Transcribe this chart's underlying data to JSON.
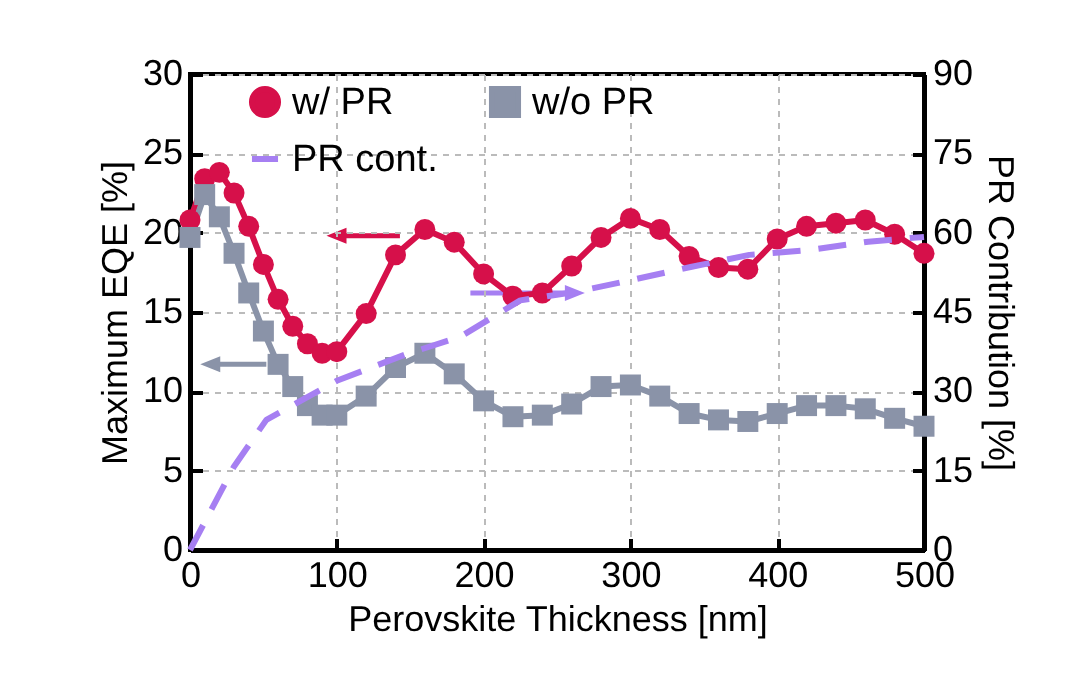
{
  "chart_data": {
    "type": "line",
    "xlabel": "Perovskite Thickness [nm]",
    "ylabel": "Maximum EQE [%]",
    "y2label": "PR Contribution [%]",
    "x": [
      0,
      10,
      20,
      30,
      40,
      50,
      60,
      70,
      80,
      90,
      100,
      120,
      140,
      160,
      180,
      200,
      220,
      240,
      260,
      280,
      300,
      320,
      340,
      360,
      380,
      400,
      420,
      440,
      460,
      480,
      500
    ],
    "series": [
      {
        "name": "w/ PR",
        "color": "#d6104a",
        "marker": "circle",
        "values": [
          20.8,
          23.4,
          23.8,
          22.5,
          20.4,
          18.0,
          15.8,
          14.1,
          13.0,
          12.4,
          12.5,
          14.9,
          18.6,
          20.2,
          19.4,
          17.4,
          16.0,
          16.2,
          17.9,
          19.7,
          20.9,
          20.2,
          18.5,
          17.8,
          17.7,
          19.6,
          20.4,
          20.6,
          20.8,
          19.9,
          18.7
        ]
      },
      {
        "name": "w/o PR",
        "color": "#8a93a8",
        "marker": "square",
        "values": [
          19.7,
          22.4,
          21.0,
          18.7,
          16.2,
          13.8,
          11.7,
          10.3,
          9.1,
          8.5,
          8.5,
          9.7,
          11.5,
          12.4,
          11.1,
          9.4,
          8.4,
          8.5,
          9.2,
          10.3,
          10.4,
          9.7,
          8.6,
          8.2,
          8.1,
          8.6,
          9.1,
          9.1,
          8.9,
          8.3,
          7.8
        ]
      },
      {
        "name": "PR cont.",
        "color": "#a67ff2",
        "axis": "y2",
        "marker": "none",
        "line_style": "dashed",
        "x": [
          0,
          30,
          52,
          100,
          148,
          184,
          225,
          263,
          300,
          341,
          381,
          422,
          462,
          500
        ],
        "values": [
          0,
          15.8,
          24.6,
          32,
          37.1,
          40.3,
          47.2,
          48.8,
          51,
          53.5,
          55.8,
          56.7,
          58.3,
          59.2
        ]
      }
    ],
    "xlim": [
      0,
      500
    ],
    "xticks": [
      0,
      100,
      200,
      300,
      400,
      500
    ],
    "ylim": [
      0,
      30
    ],
    "yticks": [
      0,
      5,
      10,
      15,
      20,
      25,
      30
    ],
    "y2lim": [
      0,
      90
    ],
    "y2ticks": [
      0,
      15,
      30,
      45,
      60,
      75,
      90
    ],
    "grid": true,
    "legend": "top"
  }
}
